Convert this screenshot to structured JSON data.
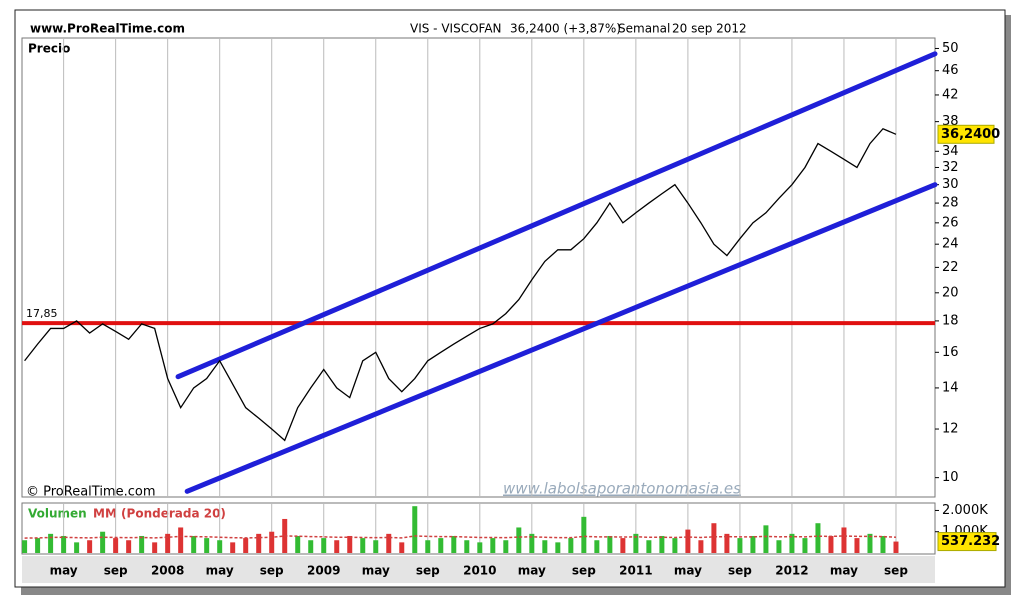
{
  "header": {
    "site": "www.ProRealTime.com",
    "title": "VIS - VISCOFAN",
    "price": "36,2400 (+3,87%)",
    "period": "Semanal",
    "date": "20 sep 2012"
  },
  "copyright": "© ProRealTime.com",
  "watermark": "www.labolsaporantonomasia.es",
  "chart_data": [
    {
      "type": "line",
      "title": "Precio",
      "log_scale": true,
      "color": "#000000",
      "x": [
        1,
        2,
        3,
        4,
        5,
        6,
        7,
        8,
        9,
        10,
        11,
        12,
        13,
        14,
        15,
        16,
        17,
        18,
        19,
        20,
        21,
        22,
        23,
        24,
        25,
        26,
        27,
        28,
        29,
        30,
        31,
        32,
        33,
        34,
        35,
        36,
        37,
        38,
        39,
        40,
        41,
        42,
        43,
        44,
        45,
        46,
        47,
        48,
        49,
        50,
        51,
        52,
        53,
        54,
        55,
        56,
        57,
        58,
        59,
        60,
        61,
        62,
        63,
        64,
        65,
        66,
        67,
        68
      ],
      "values": [
        15.5,
        16.5,
        17.5,
        17.5,
        18,
        17.2,
        17.8,
        17.3,
        16.8,
        17.8,
        17.5,
        14.5,
        13,
        14,
        14.5,
        15.5,
        14.2,
        13,
        12.5,
        12,
        11.5,
        13,
        14,
        15,
        14,
        13.5,
        15.5,
        16,
        14.5,
        13.8,
        14.5,
        15.5,
        16,
        16.5,
        17,
        17.5,
        17.8,
        18.5,
        19.5,
        21,
        22.5,
        23.5,
        23.5,
        24.5,
        26,
        28,
        26,
        27,
        28,
        29,
        30,
        28,
        26,
        24,
        23,
        24.5,
        26,
        27,
        28.5,
        30,
        32,
        35,
        34,
        33,
        32,
        35,
        37,
        36.24
      ],
      "xlim": [
        0.8,
        71
      ],
      "ylim": [
        9.3,
        52
      ],
      "yticks": [
        10,
        12,
        14,
        16,
        18,
        20,
        22,
        24,
        26,
        28,
        30,
        32,
        34,
        38,
        42,
        46,
        50
      ],
      "reference_line": {
        "value": 17.85,
        "label": "17,85",
        "color": "#e01010"
      },
      "last_value": {
        "value": 36.24,
        "label": "36,2400"
      },
      "channels": [
        {
          "color": "#1f1fd8",
          "x": [
            12.8,
            71
          ],
          "values": [
            14.6,
            49
          ]
        },
        {
          "color": "#1f1fd8",
          "x": [
            13.5,
            71
          ],
          "values": [
            9.5,
            30
          ]
        }
      ]
    },
    {
      "type": "bar",
      "title": "Volumen",
      "up_color": "#33bb33",
      "down_color": "#dd3333",
      "x": [
        1,
        2,
        3,
        4,
        5,
        6,
        7,
        8,
        9,
        10,
        11,
        12,
        13,
        14,
        15,
        16,
        17,
        18,
        19,
        20,
        21,
        22,
        23,
        24,
        25,
        26,
        27,
        28,
        29,
        30,
        31,
        32,
        33,
        34,
        35,
        36,
        37,
        38,
        39,
        40,
        41,
        42,
        43,
        44,
        45,
        46,
        47,
        48,
        49,
        50,
        51,
        52,
        53,
        54,
        55,
        56,
        57,
        58,
        59,
        60,
        61,
        62,
        63,
        64,
        65,
        66,
        67,
        68
      ],
      "values": [
        600,
        700,
        900,
        800,
        500,
        600,
        1000,
        700,
        600,
        800,
        500,
        900,
        1200,
        800,
        700,
        600,
        500,
        700,
        900,
        1000,
        1600,
        800,
        600,
        700,
        600,
        800,
        700,
        600,
        900,
        500,
        2200,
        600,
        700,
        800,
        600,
        500,
        700,
        600,
        1200,
        900,
        600,
        500,
        700,
        1700,
        600,
        800,
        700,
        900,
        600,
        800,
        700,
        1100,
        600,
        1400,
        900,
        700,
        800,
        1300,
        600,
        900,
        700,
        1400,
        800,
        1200,
        700,
        900,
        800,
        537.232
      ],
      "series": [
        {
          "name": "MM (Ponderada 20)",
          "color": "#d04040",
          "values": [
            700,
            710,
            730,
            740,
            720,
            710,
            740,
            730,
            720,
            730,
            710,
            740,
            780,
            770,
            760,
            740,
            720,
            710,
            720,
            740,
            800,
            790,
            770,
            760,
            740,
            740,
            730,
            720,
            730,
            710,
            800,
            780,
            770,
            770,
            750,
            730,
            730,
            720,
            750,
            760,
            740,
            720,
            720,
            780,
            760,
            760,
            750,
            760,
            740,
            740,
            730,
            750,
            730,
            760,
            770,
            760,
            760,
            780,
            760,
            770,
            760,
            790,
            780,
            800,
            780,
            780,
            770,
            740
          ]
        }
      ],
      "xlim": [
        0.8,
        71
      ],
      "ylim": [
        0,
        2350
      ],
      "yticks": [
        {
          "value": 1000,
          "label": "1.000K"
        },
        {
          "value": 2000,
          "label": "2.000K"
        }
      ],
      "last_value": {
        "value": 537.232,
        "label": "537.232"
      },
      "xticks": [
        {
          "value": 4,
          "label": "may"
        },
        {
          "value": 8,
          "label": "sep"
        },
        {
          "value": 12,
          "label": "2008"
        },
        {
          "value": 16,
          "label": "may"
        },
        {
          "value": 20,
          "label": "sep"
        },
        {
          "value": 24,
          "label": "2009"
        },
        {
          "value": 28,
          "label": "may"
        },
        {
          "value": 32,
          "label": "sep"
        },
        {
          "value": 36,
          "label": "2010"
        },
        {
          "value": 40,
          "label": "may"
        },
        {
          "value": 44,
          "label": "sep"
        },
        {
          "value": 48,
          "label": "2011"
        },
        {
          "value": 52,
          "label": "may"
        },
        {
          "value": 56,
          "label": "sep"
        },
        {
          "value": 60,
          "label": "2012"
        },
        {
          "value": 64,
          "label": "may"
        },
        {
          "value": 68,
          "label": "sep"
        }
      ]
    }
  ]
}
